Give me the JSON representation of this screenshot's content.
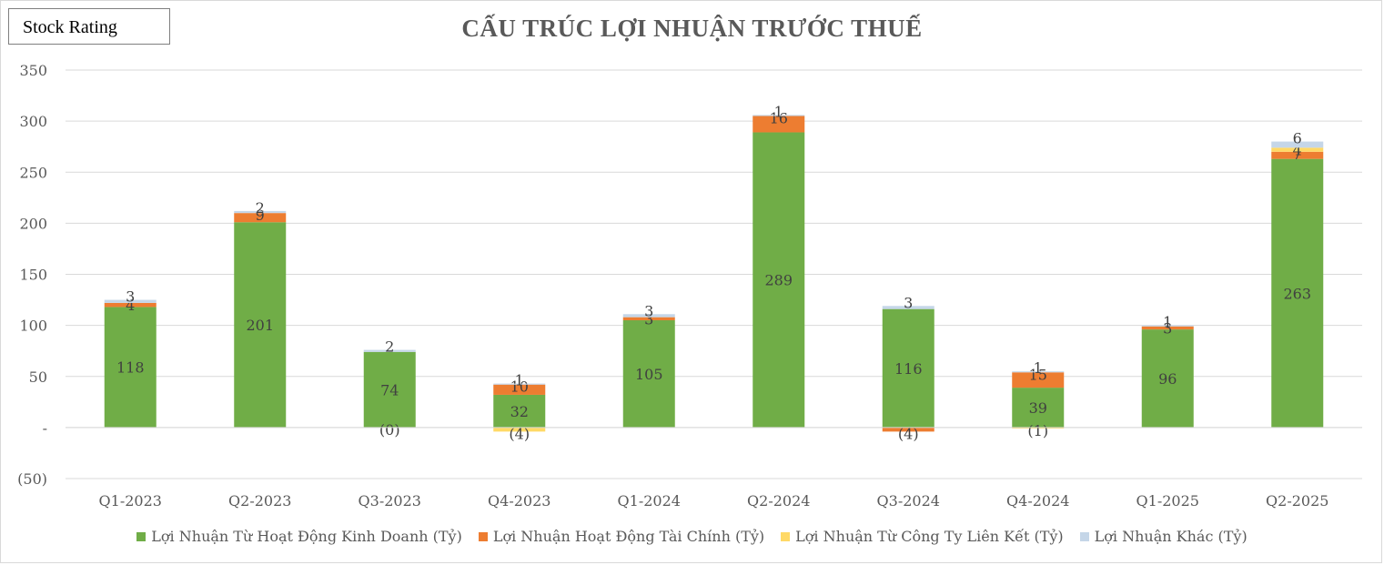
{
  "badge": "Stock Rating",
  "chart_data": {
    "type": "bar",
    "stacked": true,
    "title": "CẤU TRÚC LỢI NHUẬN TRƯỚC THUẾ",
    "xlabel": "",
    "ylabel": "",
    "ylim": [
      -50,
      350
    ],
    "yticks": [
      -50,
      0,
      50,
      100,
      150,
      200,
      250,
      300,
      350
    ],
    "ytick_labels": [
      "(50)",
      "-",
      "50",
      "100",
      "150",
      "200",
      "250",
      "300",
      "350"
    ],
    "grid": true,
    "legend_position": "bottom",
    "categories": [
      "Q1-2023",
      "Q2-2023",
      "Q3-2023",
      "Q4-2023",
      "Q1-2024",
      "Q2-2024",
      "Q3-2024",
      "Q4-2024",
      "Q1-2025",
      "Q2-2025"
    ],
    "series": [
      {
        "name": "Lợi Nhuận Từ Hoạt Động Kinh Doanh (Tỷ)",
        "color": "#70ad47",
        "values": [
          118,
          201,
          74,
          32,
          105,
          289,
          116,
          39,
          96,
          263
        ],
        "labels": [
          "118",
          "201",
          "74",
          "32",
          "105",
          "289",
          "116",
          "39",
          "96",
          "263"
        ]
      },
      {
        "name": "Lợi Nhuận Hoạt Động Tài Chính (Tỷ)",
        "color": "#ed7d31",
        "values": [
          4,
          9,
          0,
          10,
          3,
          16,
          -4,
          15,
          3,
          7
        ],
        "labels": [
          "4",
          "9",
          "(0)",
          "10",
          "3",
          "16",
          "(4)",
          "15",
          "3",
          "7"
        ]
      },
      {
        "name": "Lợi Nhuận Từ Công Ty Liên Kết (Tỷ)",
        "color": "#ffd966",
        "values": [
          0,
          0,
          0,
          -4,
          0,
          0,
          0,
          -1,
          0,
          4
        ],
        "labels": [
          "",
          "",
          "",
          "(4)",
          "",
          "",
          "",
          "(1)",
          "",
          "4"
        ]
      },
      {
        "name": "Lợi Nhuận Khác (Tỷ)",
        "color": "#c5d6e8",
        "values": [
          3,
          2,
          2,
          1,
          3,
          1,
          3,
          1,
          1,
          6
        ],
        "labels": [
          "3",
          "2",
          "2",
          "1",
          "3",
          "1",
          "3",
          "1",
          "1",
          "6"
        ]
      }
    ]
  }
}
